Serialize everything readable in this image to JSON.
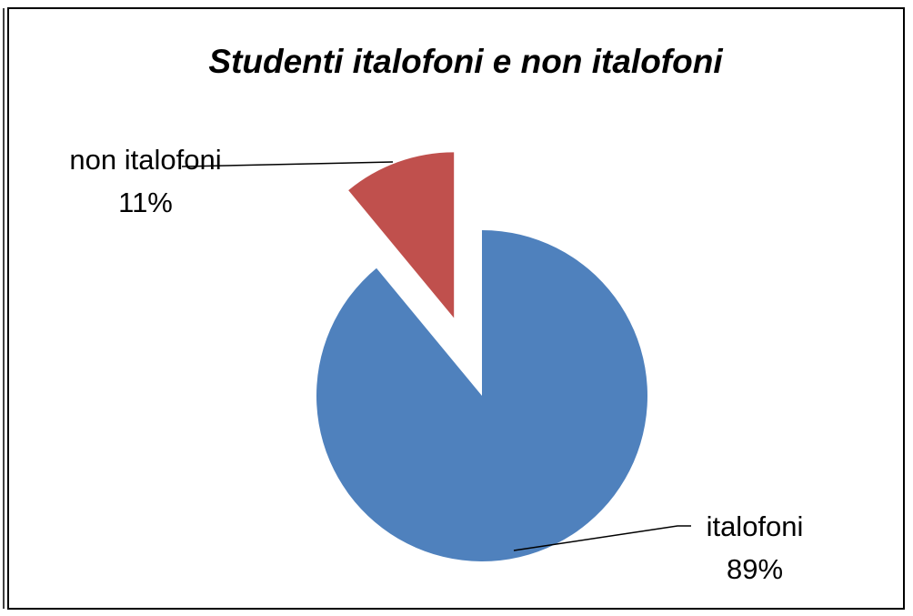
{
  "chart_data": {
    "type": "pie",
    "title": "Studenti italofoni e non italofoni",
    "categories": [
      "italofoni",
      "non italofoni"
    ],
    "values": [
      89,
      11
    ],
    "value_labels": [
      "89%",
      "11%"
    ],
    "colors": [
      "#4f81bd",
      "#c0504d"
    ]
  }
}
